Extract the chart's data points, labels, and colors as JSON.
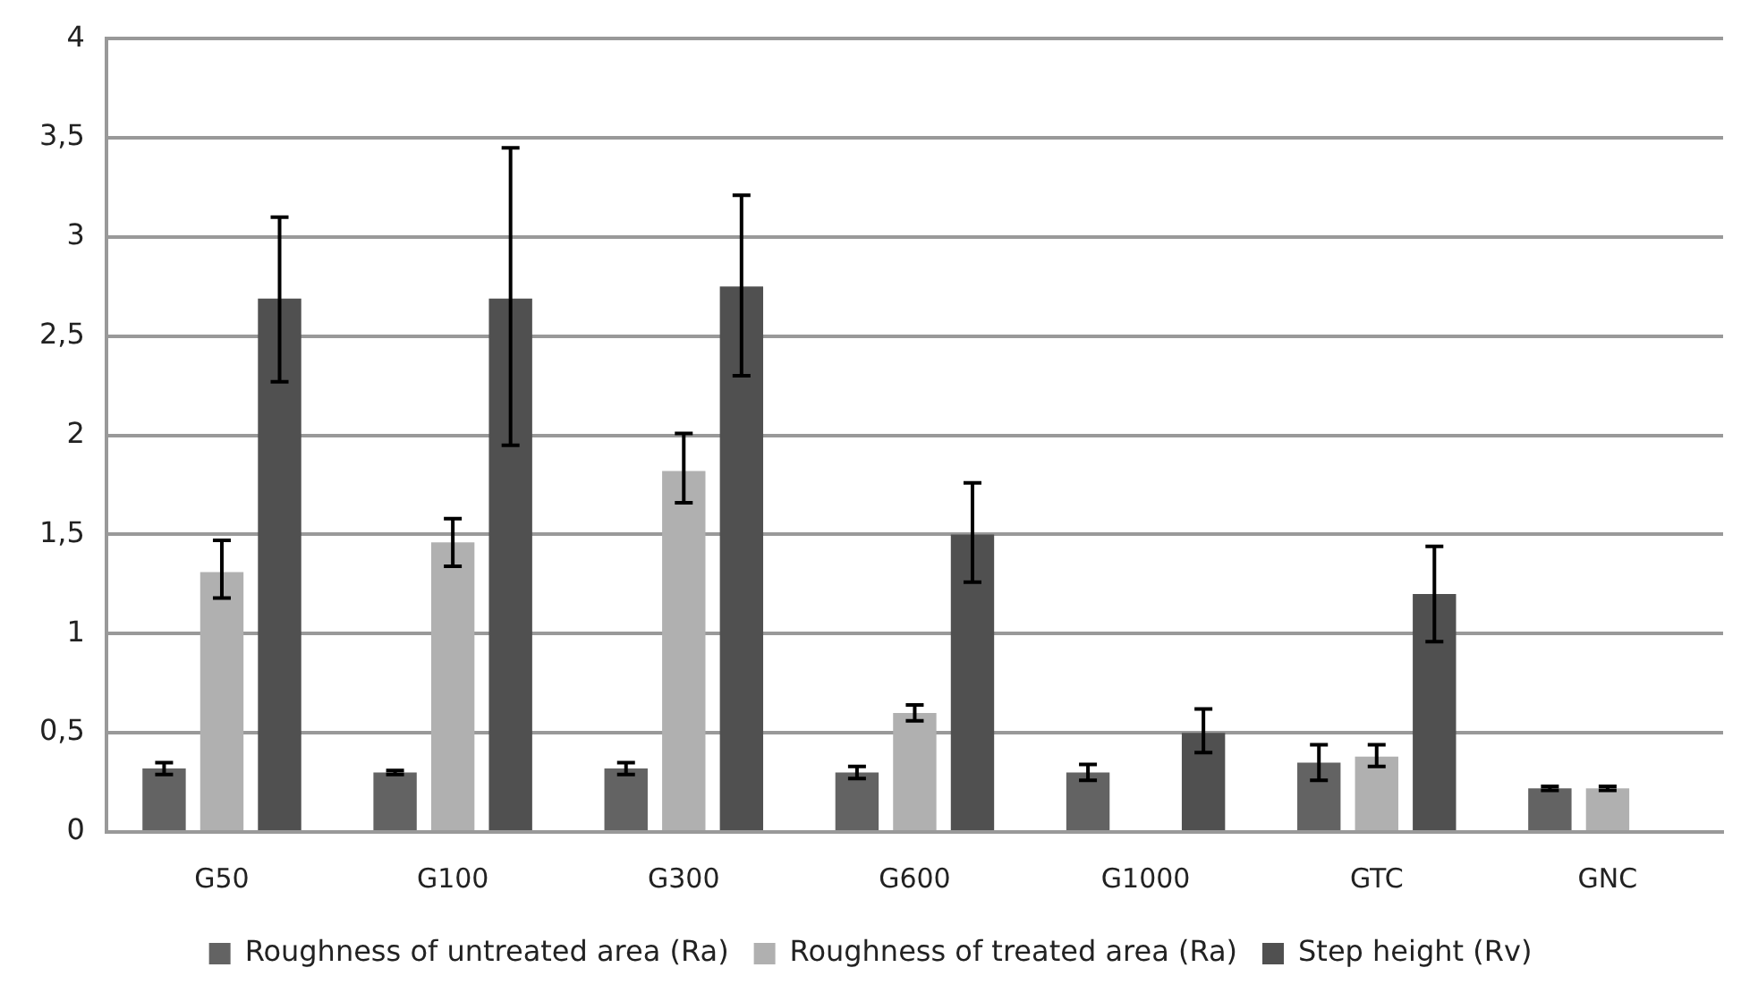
{
  "chart_data": {
    "type": "bar",
    "categories": [
      "G50",
      "G100",
      "G300",
      "G600",
      "G1000",
      "GTC",
      "GNC"
    ],
    "series": [
      {
        "name": "Roughness of untreated area (Ra)",
        "color": "#636363",
        "values": [
          0.32,
          0.3,
          0.32,
          0.3,
          0.3,
          0.35,
          0.22
        ],
        "errors": [
          [
            0.29,
            0.35
          ],
          [
            0.29,
            0.31
          ],
          [
            0.29,
            0.35
          ],
          [
            0.27,
            0.33
          ],
          [
            0.26,
            0.34
          ],
          [
            0.26,
            0.44
          ],
          [
            0.21,
            0.23
          ]
        ]
      },
      {
        "name": "Roughness of treated area (Ra)",
        "color": "#b0b0b0",
        "values": [
          1.31,
          1.46,
          1.82,
          0.6,
          null,
          0.38,
          0.22
        ],
        "errors": [
          [
            1.18,
            1.47
          ],
          [
            1.34,
            1.58
          ],
          [
            1.66,
            2.01
          ],
          [
            0.56,
            0.64
          ],
          null,
          [
            0.33,
            0.44
          ],
          [
            0.21,
            0.23
          ]
        ]
      },
      {
        "name": "Step height (Rv)",
        "color": "#505050",
        "values": [
          2.69,
          2.69,
          2.75,
          1.5,
          0.5,
          1.2,
          null
        ],
        "errors": [
          [
            2.27,
            3.1
          ],
          [
            1.95,
            3.45
          ],
          [
            2.3,
            3.21
          ],
          [
            1.26,
            1.76
          ],
          [
            0.4,
            0.62
          ],
          [
            0.96,
            1.44
          ],
          null
        ]
      }
    ],
    "ylim": [
      0,
      4
    ],
    "yticks": [
      0,
      {
        "value": 0.5,
        "label": "0,5"
      },
      1,
      {
        "value": 1.5,
        "label": "1,5"
      },
      2,
      {
        "value": 2.5,
        "label": "2,5"
      },
      3,
      {
        "value": 3.5,
        "label": "3,5"
      },
      4
    ],
    "grid": "y",
    "legend": "bottom"
  }
}
